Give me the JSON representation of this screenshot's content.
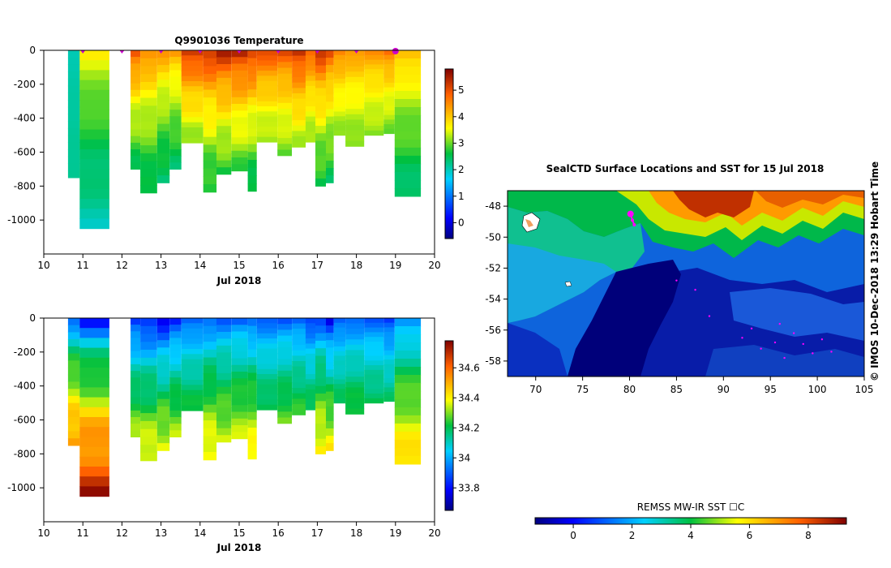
{
  "chart_data": [
    {
      "type": "heatmap",
      "title": "Q9901036  Temperature",
      "variable": "temperature",
      "xlabel": "Jul 2018",
      "ylabel": "",
      "xlim": [
        10,
        20
      ],
      "ylim": [
        -1200,
        0
      ],
      "xticks": [
        "10",
        "11",
        "12",
        "13",
        "14",
        "15",
        "16",
        "17",
        "18",
        "19",
        "20"
      ],
      "yticks": [
        "0",
        "-200",
        "-400",
        "-600",
        "-800",
        "-1000"
      ],
      "colorbar": {
        "min": -0.6,
        "max": 5.8,
        "ticks": [
          "0",
          "1",
          "2",
          "3",
          "4",
          "5"
        ]
      },
      "profile_markers": [
        11,
        12,
        13,
        14,
        15,
        16,
        17,
        18,
        19
      ],
      "profiles": [
        {
          "start": 10.62,
          "end": 10.92,
          "max_depth": 750,
          "surface": 2.0,
          "deep": 2.2
        },
        {
          "start": 10.92,
          "end": 11.68,
          "max_depth": 1050,
          "surface": 3.8,
          "deep": 2.0
        },
        {
          "start": 12.22,
          "end": 12.47,
          "max_depth": 700,
          "surface": 5.3,
          "deep": 2.5
        },
        {
          "start": 12.47,
          "end": 12.9,
          "max_depth": 840,
          "surface": 4.8,
          "deep": 2.4
        },
        {
          "start": 12.9,
          "end": 13.22,
          "max_depth": 780,
          "surface": 4.6,
          "deep": 2.3
        },
        {
          "start": 13.22,
          "end": 13.52,
          "max_depth": 700,
          "surface": 4.5,
          "deep": 2.4
        },
        {
          "start": 13.52,
          "end": 14.08,
          "max_depth": 545,
          "surface": 5.6,
          "deep": 3.1
        },
        {
          "start": 14.08,
          "end": 14.42,
          "max_depth": 835,
          "surface": 5.6,
          "deep": 2.5
        },
        {
          "start": 14.42,
          "end": 14.8,
          "max_depth": 730,
          "surface": 5.7,
          "deep": 2.7
        },
        {
          "start": 14.8,
          "end": 15.22,
          "max_depth": 710,
          "surface": 5.7,
          "deep": 2.8
        },
        {
          "start": 15.22,
          "end": 15.45,
          "max_depth": 830,
          "surface": 5.6,
          "deep": 2.4
        },
        {
          "start": 15.45,
          "end": 15.98,
          "max_depth": 540,
          "surface": 5.3,
          "deep": 3.1
        },
        {
          "start": 15.98,
          "end": 16.35,
          "max_depth": 620,
          "surface": 5.2,
          "deep": 3.0
        },
        {
          "start": 16.35,
          "end": 16.7,
          "max_depth": 570,
          "surface": 5.6,
          "deep": 3.2
        },
        {
          "start": 16.7,
          "end": 16.95,
          "max_depth": 540,
          "surface": 5.1,
          "deep": 3.1
        },
        {
          "start": 16.95,
          "end": 17.22,
          "max_depth": 800,
          "surface": 5.5,
          "deep": 2.5
        },
        {
          "start": 17.22,
          "end": 17.42,
          "max_depth": 780,
          "surface": 5.2,
          "deep": 2.5
        },
        {
          "start": 17.42,
          "end": 17.72,
          "max_depth": 500,
          "surface": 4.8,
          "deep": 3.1
        },
        {
          "start": 17.72,
          "end": 18.2,
          "max_depth": 565,
          "surface": 4.6,
          "deep": 3.0
        },
        {
          "start": 18.2,
          "end": 18.7,
          "max_depth": 500,
          "surface": 4.6,
          "deep": 3.1
        },
        {
          "start": 18.7,
          "end": 18.98,
          "max_depth": 490,
          "surface": 4.9,
          "deep": 3.0
        },
        {
          "start": 18.98,
          "end": 19.65,
          "max_depth": 860,
          "surface": 4.4,
          "deep": 2.3
        }
      ]
    },
    {
      "type": "heatmap",
      "title": "",
      "variable": "salinity",
      "xlabel": "Jul 2018",
      "ylabel": "",
      "xlim": [
        10,
        20
      ],
      "ylim": [
        -1200,
        0
      ],
      "xticks": [
        "10",
        "11",
        "12",
        "13",
        "14",
        "15",
        "16",
        "17",
        "18",
        "19",
        "20"
      ],
      "yticks": [
        "0",
        "-200",
        "-400",
        "-600",
        "-800",
        "-1000"
      ],
      "colorbar": {
        "min": 33.65,
        "max": 34.78,
        "ticks": [
          "33.8",
          "34",
          "34.2",
          "34.4",
          "34.6"
        ]
      },
      "profiles": [
        {
          "start": 10.62,
          "end": 10.92,
          "max_depth": 750,
          "surface": 33.85,
          "deep": 34.55
        },
        {
          "start": 10.92,
          "end": 11.68,
          "max_depth": 1050,
          "surface": 33.75,
          "deep": 34.72
        },
        {
          "start": 12.22,
          "end": 12.47,
          "max_depth": 700,
          "surface": 33.78,
          "deep": 34.33
        },
        {
          "start": 12.47,
          "end": 12.9,
          "max_depth": 840,
          "surface": 33.75,
          "deep": 34.4
        },
        {
          "start": 12.9,
          "end": 13.22,
          "max_depth": 780,
          "surface": 33.72,
          "deep": 34.38
        },
        {
          "start": 13.22,
          "end": 13.52,
          "max_depth": 700,
          "surface": 33.78,
          "deep": 34.33
        },
        {
          "start": 13.52,
          "end": 14.08,
          "max_depth": 545,
          "surface": 33.85,
          "deep": 34.23
        },
        {
          "start": 14.08,
          "end": 14.42,
          "max_depth": 835,
          "surface": 33.85,
          "deep": 34.42
        },
        {
          "start": 14.42,
          "end": 14.8,
          "max_depth": 730,
          "surface": 33.86,
          "deep": 34.35
        },
        {
          "start": 14.8,
          "end": 15.22,
          "max_depth": 710,
          "surface": 33.86,
          "deep": 34.35
        },
        {
          "start": 15.22,
          "end": 15.45,
          "max_depth": 830,
          "surface": 33.83,
          "deep": 34.42
        },
        {
          "start": 15.45,
          "end": 15.98,
          "max_depth": 540,
          "surface": 33.86,
          "deep": 34.22
        },
        {
          "start": 15.98,
          "end": 16.35,
          "max_depth": 620,
          "surface": 33.86,
          "deep": 34.28
        },
        {
          "start": 16.35,
          "end": 16.7,
          "max_depth": 570,
          "surface": 33.86,
          "deep": 34.25
        },
        {
          "start": 16.7,
          "end": 16.95,
          "max_depth": 540,
          "surface": 33.8,
          "deep": 34.22
        },
        {
          "start": 16.95,
          "end": 17.22,
          "max_depth": 800,
          "surface": 33.82,
          "deep": 34.42
        },
        {
          "start": 17.22,
          "end": 17.42,
          "max_depth": 780,
          "surface": 33.72,
          "deep": 34.4
        },
        {
          "start": 17.42,
          "end": 17.72,
          "max_depth": 500,
          "surface": 33.85,
          "deep": 34.2
        },
        {
          "start": 17.72,
          "end": 18.2,
          "max_depth": 565,
          "surface": 33.86,
          "deep": 34.25
        },
        {
          "start": 18.2,
          "end": 18.7,
          "max_depth": 500,
          "surface": 33.86,
          "deep": 34.2
        },
        {
          "start": 18.7,
          "end": 18.98,
          "max_depth": 490,
          "surface": 33.82,
          "deep": 34.18
        },
        {
          "start": 18.98,
          "end": 19.65,
          "max_depth": 860,
          "surface": 33.88,
          "deep": 34.45
        }
      ]
    },
    {
      "type": "heatmap",
      "title": "SealCTD Surface Locations and SST for 15 Jul 2018",
      "variable": "sea surface temperature map",
      "xlabel": "",
      "ylabel": "",
      "xlim": [
        67,
        105
      ],
      "ylim": [
        -59,
        -47
      ],
      "xticks": [
        "70",
        "75",
        "80",
        "85",
        "90",
        "95",
        "100",
        "105"
      ],
      "yticks": [
        "-48",
        "-50",
        "-52",
        "-54",
        "-56",
        "-58"
      ],
      "colorbar": {
        "label": "REMSS MW-IR SST ☐C",
        "min": -1.3,
        "max": 9.3,
        "ticks": [
          "0",
          "2",
          "4",
          "6",
          "8"
        ]
      },
      "seal_track": [
        [
          80.1,
          -48.5
        ],
        [
          80.3,
          -48.9
        ],
        [
          80.5,
          -49.2
        ]
      ]
    }
  ],
  "side_note": "© IMOS 10-Dec-2018 13:29 Hobart Time",
  "colors": {
    "track": "#ff00ff",
    "land": "#ffffff"
  }
}
